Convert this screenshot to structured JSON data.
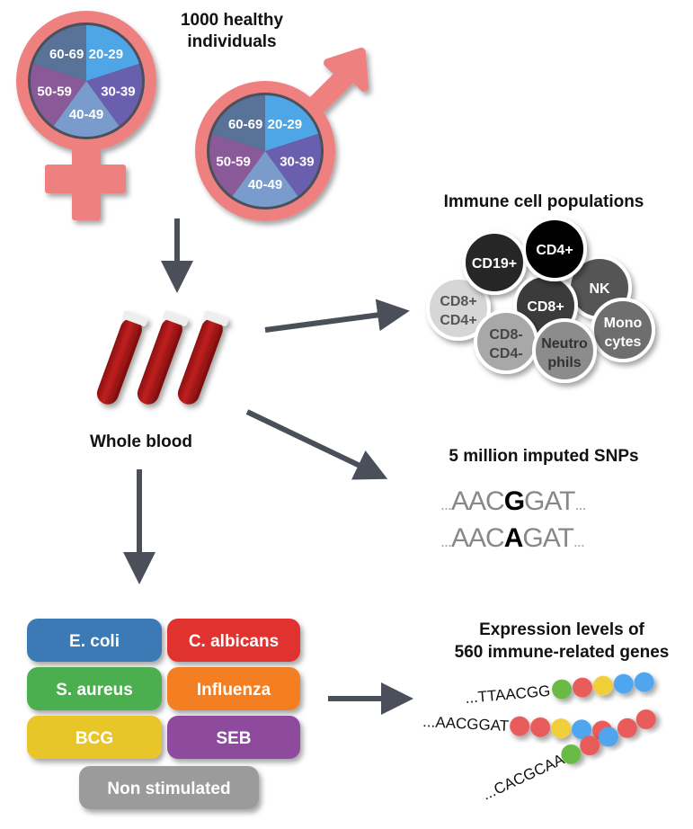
{
  "header": {
    "title_line1": "1000 healthy",
    "title_line2": "individuals"
  },
  "age_groups": [
    "20-29",
    "30-39",
    "40-49",
    "50-59",
    "60-69"
  ],
  "age_colors": [
    "#4fa6e6",
    "#6a5fae",
    "#7a9ccc",
    "#8a5a98",
    "#587298"
  ],
  "sex_symbol_color": "#ee8080",
  "whole_blood": {
    "label": "Whole blood"
  },
  "immune_cells": {
    "title": "Immune cell populations",
    "cells": [
      {
        "line1": "CD8+",
        "line2": "CD4+",
        "fill": "#d6d6d6",
        "text_color": "#555"
      },
      {
        "line1": "CD19+",
        "line2": "",
        "fill": "#262626",
        "text_color": "#fff"
      },
      {
        "line1": "NK",
        "line2": "",
        "fill": "#555555",
        "text_color": "#fff"
      },
      {
        "line1": "CD8+",
        "line2": "",
        "fill": "#3a3a3a",
        "text_color": "#fff"
      },
      {
        "line1": "CD4+",
        "line2": "",
        "fill": "#000000",
        "text_color": "#fff"
      },
      {
        "line1": "CD8-",
        "line2": "CD4-",
        "fill": "#a8a8a8",
        "text_color": "#444"
      },
      {
        "line1": "Mono",
        "line2": "cytes",
        "fill": "#6e6e6e",
        "text_color": "#fff"
      },
      {
        "line1": "Neutro",
        "line2": "phils",
        "fill": "#8c8c8c",
        "text_color": "#333"
      }
    ]
  },
  "snps": {
    "title": "5 million imputed SNPs",
    "seq1": {
      "dots_left": "...",
      "before": "AAC",
      "variant": "G",
      "after": "GAT",
      "dots_right": "..."
    },
    "seq2": {
      "dots_left": "...",
      "before": "AAC",
      "variant": "A",
      "after": "GAT",
      "dots_right": "..."
    }
  },
  "stimuli": [
    {
      "label": "E. coli",
      "color": "#3a7ab5"
    },
    {
      "label": "C. albicans",
      "color": "#e0312f"
    },
    {
      "label": "S. aureus",
      "color": "#4caf50"
    },
    {
      "label": "Influenza",
      "color": "#f47f24"
    },
    {
      "label": "BCG",
      "color": "#e8c629"
    },
    {
      "label": "SEB",
      "color": "#8e4c9e"
    },
    {
      "label": "Non stimulated",
      "color": "#9b9b9b"
    }
  ],
  "expression": {
    "title_line1": "Expression levels of",
    "title_line2": "560 immune-related genes",
    "sequences": [
      "...TTAACGG",
      "...AACGGAT",
      "...CACGCAA"
    ],
    "bead_colors": {
      "green": "#6bbb45",
      "red": "#e85c5c",
      "yellow": "#f1cf3b",
      "blue": "#4fa6ef"
    }
  }
}
